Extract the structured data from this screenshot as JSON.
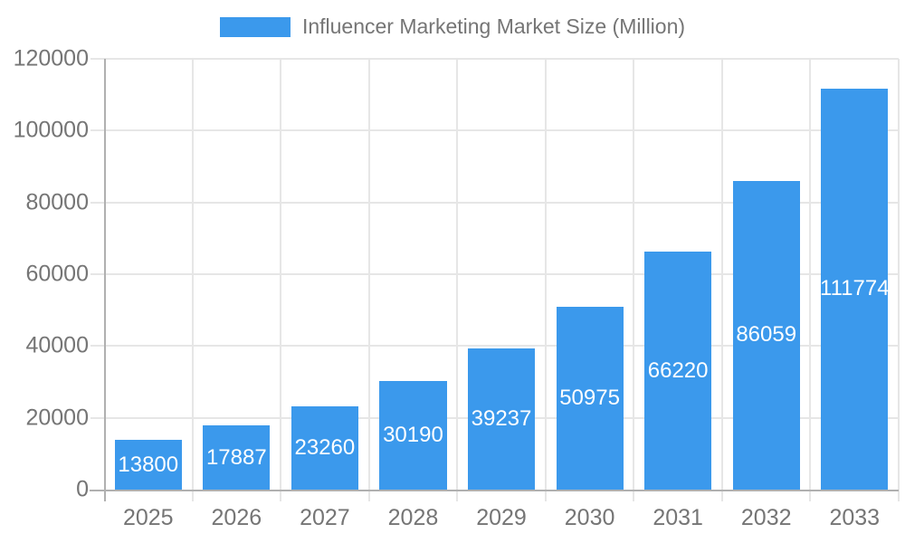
{
  "legend": {
    "label": "Influencer Marketing Market Size (Million)"
  },
  "chart_data": {
    "type": "bar",
    "title": "Influencer Marketing Market Size (Million)",
    "categories": [
      "2025",
      "2026",
      "2027",
      "2028",
      "2029",
      "2030",
      "2031",
      "2032",
      "2033"
    ],
    "series": [
      {
        "name": "Influencer Marketing Market Size (Million)",
        "values": [
          13800,
          17887,
          23260,
          30190,
          39237,
          50975,
          66220,
          86059,
          111774
        ]
      }
    ],
    "data_labels": [
      "13800",
      "17887",
      "23260",
      "30190",
      "39237",
      "50975",
      "66220",
      "86059",
      "111774"
    ],
    "xlabel": "",
    "ylabel": "",
    "ylim": [
      0,
      120000
    ],
    "y_ticks": [
      0,
      20000,
      40000,
      60000,
      80000,
      100000,
      120000
    ],
    "y_tick_labels": [
      "0",
      "20000",
      "40000",
      "60000",
      "80000",
      "100000",
      "120000"
    ],
    "grid": true,
    "legend_position": "top-center",
    "data_label_position": "inside-center",
    "colors": {
      "bar": "#3B99EC",
      "grid_line": "#E6E6E6",
      "axis_line": "#B0B0B0",
      "axis_text": "#757575",
      "data_label_text": "#FFFFFF",
      "background": "#FFFFFF"
    }
  }
}
